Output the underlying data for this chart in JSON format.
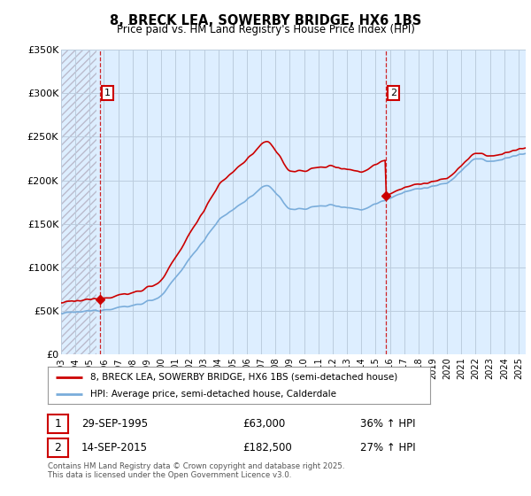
{
  "title": "8, BRECK LEA, SOWERBY BRIDGE, HX6 1BS",
  "subtitle": "Price paid vs. HM Land Registry's House Price Index (HPI)",
  "legend_line1": "8, BRECK LEA, SOWERBY BRIDGE, HX6 1BS (semi-detached house)",
  "legend_line2": "HPI: Average price, semi-detached house, Calderdale",
  "annotation1_label": "1",
  "annotation1_date": "29-SEP-1995",
  "annotation1_price": "£63,000",
  "annotation1_hpi": "36% ↑ HPI",
  "annotation2_label": "2",
  "annotation2_date": "14-SEP-2015",
  "annotation2_price": "£182,500",
  "annotation2_hpi": "27% ↑ HPI",
  "footer": "Contains HM Land Registry data © Crown copyright and database right 2025.\nThis data is licensed under the Open Government Licence v3.0.",
  "ylim": [
    0,
    350000
  ],
  "yticks": [
    0,
    50000,
    100000,
    150000,
    200000,
    250000,
    300000,
    350000
  ],
  "ytick_labels": [
    "£0",
    "£50K",
    "£100K",
    "£150K",
    "£200K",
    "£250K",
    "£300K",
    "£350K"
  ],
  "price_paid_color": "#cc0000",
  "hpi_color": "#7aaddb",
  "marker1_x": 1995.75,
  "marker1_y": 63000,
  "marker2_x": 2015.71,
  "marker2_y": 182500,
  "vline1_x": 1995.75,
  "vline2_x": 2015.71,
  "background_color": "#ffffff",
  "chart_bg_color": "#ddeeff",
  "grid_color": "#bbccdd",
  "hatch_color": "#bbbbcc",
  "xmin": 1993.0,
  "xmax": 2025.5
}
